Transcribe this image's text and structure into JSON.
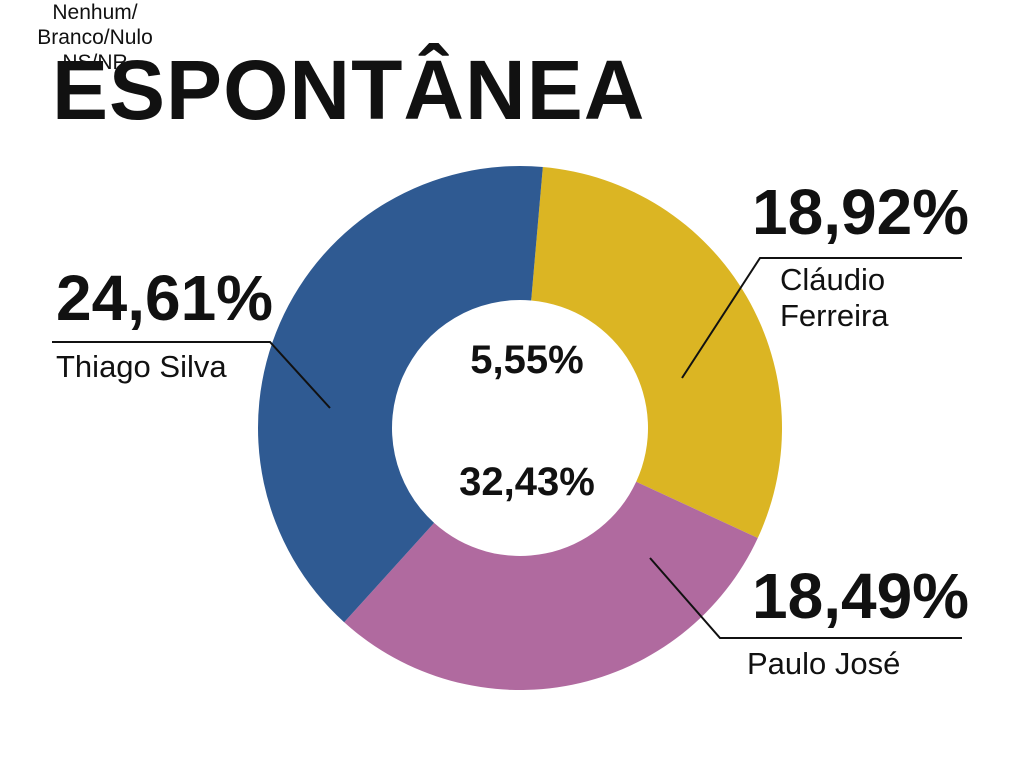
{
  "title": "ESPONTÂNEA",
  "chart_data": {
    "type": "pie",
    "title": "ESPONTÂNEA",
    "donut": true,
    "slices": [
      {
        "name": "Cláudio Ferreira",
        "value": 18.92,
        "label": "18,92%",
        "color": "#dbb523"
      },
      {
        "name": "Paulo José",
        "value": 18.49,
        "label": "18,49%",
        "color": "#b06a9f"
      },
      {
        "name": "Thiago Silva",
        "value": 24.61,
        "label": "24,61%",
        "color": "#2f5a92"
      }
    ],
    "center": [
      {
        "value": 5.55,
        "label": "5,55%",
        "name": "Nenhum/\nBranco/Nulo"
      },
      {
        "value": 32.43,
        "label": "32,43%",
        "name": "NS/NR"
      }
    ]
  }
}
